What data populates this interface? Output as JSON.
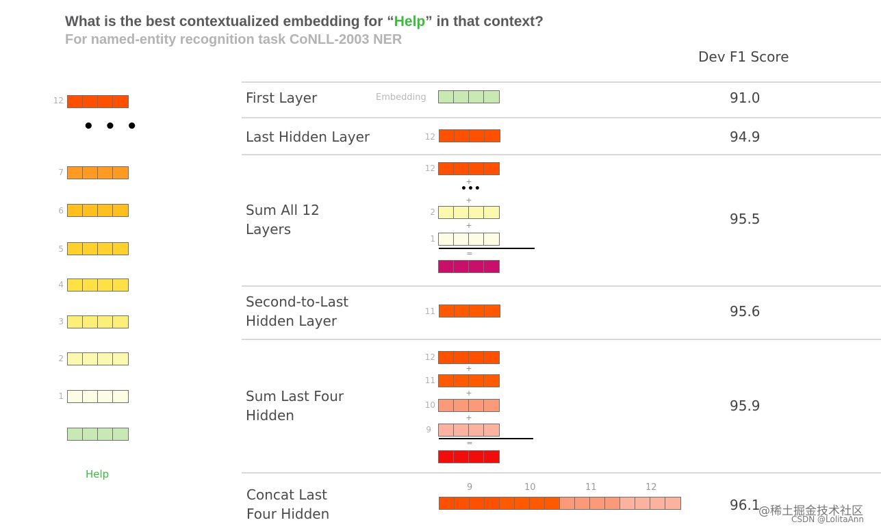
{
  "header": {
    "title_pre": "What is the best contextualized embedding for “",
    "title_word": "Help",
    "title_post": "” in that context?",
    "subtitle": "For named-entity recognition task CoNLL-2003 NER",
    "score_column": "Dev F1 Score"
  },
  "colors": {
    "layer12": "#ff5000",
    "layer11": "#ff5a00",
    "layer10": "#fb9a78",
    "layer9": "#fbb29e",
    "layer7": "#ff9a22",
    "layer6": "#ffbf1e",
    "layer5": "#ffd12f",
    "layer4": "#ffe146",
    "layer3": "#fbef78",
    "layer2": "#fbf8b0",
    "layer1": "#fdfde6",
    "embedding": "#c8e8b4",
    "sum_all": "#c8106a",
    "sum_last_four": "#f20d0d",
    "highlight_word": "#3dbb3d"
  },
  "stack": {
    "layers": [
      {
        "num": "12",
        "color_key": "layer12"
      },
      {
        "num": "7",
        "color_key": "layer7"
      },
      {
        "num": "6",
        "color_key": "layer6"
      },
      {
        "num": "5",
        "color_key": "layer5"
      },
      {
        "num": "4",
        "color_key": "layer4"
      },
      {
        "num": "3",
        "color_key": "layer3"
      },
      {
        "num": "2",
        "color_key": "layer2"
      },
      {
        "num": "1",
        "color_key": "layer1"
      }
    ],
    "ellipsis": "• • •",
    "token": "Help"
  },
  "rows": [
    {
      "label": "First Layer",
      "score": "91.0",
      "emb_label": "Embedding"
    },
    {
      "label": "Last Hidden Layer",
      "score": "94.9",
      "layer_num": "12"
    },
    {
      "label_line1": "Sum All 12",
      "label_line2": "Layers",
      "score": "95.5",
      "nums": [
        "12",
        "2",
        "1"
      ]
    },
    {
      "label_line1": "Second-to-Last",
      "label_line2": "Hidden Layer",
      "score": "95.6",
      "layer_num": "11"
    },
    {
      "label_line1": "Sum Last Four",
      "label_line2": "Hidden",
      "score": "95.9",
      "nums": [
        "12",
        "11",
        "10",
        "9"
      ]
    },
    {
      "label_line1": "Concat Last",
      "label_line2": "Four Hidden",
      "score": "96.1",
      "nums": [
        "9",
        "10",
        "11",
        "12"
      ]
    }
  ],
  "ops": {
    "plus": "+",
    "equals": "=",
    "dots": "•••"
  },
  "watermark": {
    "line1": "@稀土掘金技术社区",
    "line2": "CSDN @LolitaAnn"
  }
}
